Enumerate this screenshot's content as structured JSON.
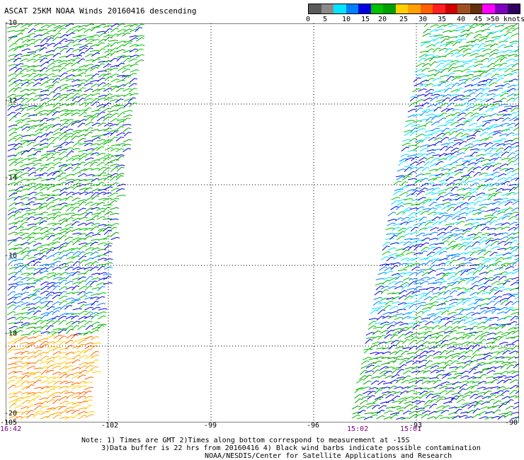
{
  "title": "ASCAT 25KM NOAA Winds 20160416 descending",
  "legend": {
    "colors": [
      "#5a5a5a",
      "#8a8a8a",
      "#00e5ff",
      "#0080ff",
      "#0000e0",
      "#00c000",
      "#00a000",
      "#ffd000",
      "#ffa000",
      "#ff6000",
      "#ff2020",
      "#d00000",
      "#a05020",
      "#603010",
      "#ff00ff",
      "#8000c0",
      "#300060"
    ],
    "labels": [
      "0",
      "5",
      "10",
      "15",
      "20",
      "25",
      "30",
      "35",
      "40",
      "45",
      ">50 knots"
    ]
  },
  "axes": {
    "lat_labels": [
      "-10",
      "-12",
      "-14",
      "-16",
      "-18",
      "-20"
    ],
    "lon_labels": [
      "-105",
      "-102",
      "-99",
      "-96",
      "-93",
      "-90"
    ]
  },
  "times": {
    "left": "16:42",
    "mid": "15:02",
    "right": "15:01"
  },
  "notes": {
    "line1": "Note: 1) Times are GMT 2)Times along bottom correspond to measurement at -15S",
    "line2": "3)Data buffer is 22 hrs from 20160416 4) Black wind barbs indicate possible contamination",
    "line3": "NOAA/NESDIS/Center for Satellite Applications and Research"
  }
}
